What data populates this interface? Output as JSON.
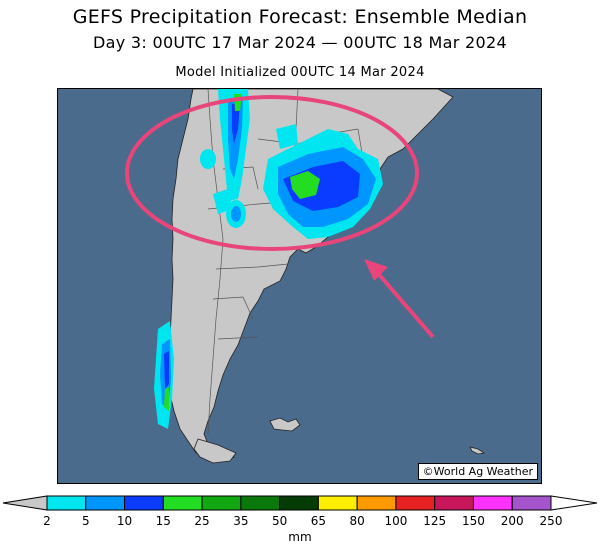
{
  "title": {
    "line1": "GEFS Precipitation Forecast: Ensemble Median",
    "line2": "Day 3: 00UTC 17 Mar 2024 — 00UTC 18 Mar 2024",
    "line3": "Model Initialized 00UTC 14 Mar 2024"
  },
  "credit": "©World Ag Weather",
  "colors": {
    "ocean": "#4a6b8c",
    "land": "#c8c8c8",
    "annotation": "#e8457a"
  },
  "legend": {
    "unit": "mm",
    "ticks": [
      "2",
      "5",
      "10",
      "15",
      "25",
      "35",
      "50",
      "65",
      "80",
      "100",
      "125",
      "150",
      "200",
      "250"
    ],
    "colors": [
      "#00e6f0",
      "#0096ff",
      "#0a3cff",
      "#22dd22",
      "#11a811",
      "#0a780a",
      "#053c05",
      "#ffee00",
      "#ff9900",
      "#e62222",
      "#c8165a",
      "#ff33ff",
      "#a455cc"
    ]
  }
}
